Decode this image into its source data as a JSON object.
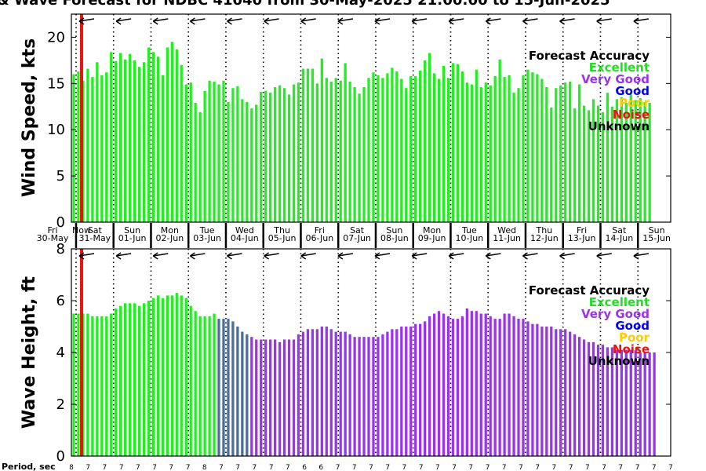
{
  "title": "& Wave Forecast for NDBC 41040 from 30-May-2025 21:00:00 to 15-Jun-2025",
  "legend": {
    "title": "Forecast Accuracy",
    "entries": [
      {
        "label": "Excellent",
        "color": "#22dd22"
      },
      {
        "label": "Very Good",
        "color": "#9933ee"
      },
      {
        "label": "Good",
        "color": "#0000ee"
      },
      {
        "label": "Poor",
        "color": "#ffcc00"
      },
      {
        "label": "Noise",
        "color": "#ee1111"
      },
      {
        "label": "Unknown",
        "color": "#000000"
      }
    ]
  },
  "colors": {
    "excellent": "#22ee22",
    "very_good": "#9933ee",
    "transition": "#4a6ea0",
    "now_line": "#ee1111"
  },
  "days": [
    {
      "dow": "Fri",
      "date": "30-May"
    },
    {
      "dow": "Sat",
      "date": "31-May"
    },
    {
      "dow": "Sun",
      "date": "01-Jun"
    },
    {
      "dow": "Mon",
      "date": "02-Jun"
    },
    {
      "dow": "Tue",
      "date": "03-Jun"
    },
    {
      "dow": "Wed",
      "date": "04-Jun"
    },
    {
      "dow": "Thu",
      "date": "05-Jun"
    },
    {
      "dow": "Fri",
      "date": "06-Jun"
    },
    {
      "dow": "Sat",
      "date": "07-Jun"
    },
    {
      "dow": "Sun",
      "date": "08-Jun"
    },
    {
      "dow": "Mon",
      "date": "09-Jun"
    },
    {
      "dow": "Tue",
      "date": "10-Jun"
    },
    {
      "dow": "Wed",
      "date": "11-Jun"
    },
    {
      "dow": "Thu",
      "date": "12-Jun"
    },
    {
      "dow": "Fri",
      "date": "13-Jun"
    },
    {
      "dow": "Sat",
      "date": "14-Jun"
    },
    {
      "dow": "Sun",
      "date": "15-Jun"
    }
  ],
  "now_label": "Now",
  "period_label": "Period, sec",
  "period_values": [
    "8",
    "7",
    "7",
    "7",
    "7",
    "7",
    "7",
    "7",
    "8",
    "7",
    "7",
    "7",
    "7",
    "7",
    "6",
    "6",
    "7",
    "7",
    "7",
    "7",
    "7",
    "7",
    "7",
    "7",
    "7",
    "7",
    "7",
    "7",
    "7",
    "7",
    "7",
    "7",
    "7",
    "7",
    "7",
    "7",
    "7"
  ],
  "chart_data": [
    {
      "type": "bar",
      "ylabel": "Wind Speed, kts",
      "ylim": [
        0,
        22.5
      ],
      "yticks": [
        0,
        5,
        10,
        15,
        20
      ],
      "x_start": "30-May-2025 21:00",
      "x_step_hours": 3,
      "values": [
        16.0,
        16.3,
        15.3,
        16.6,
        15.7,
        17.3,
        15.9,
        16.2,
        18.4,
        17.4,
        18.3,
        17.6,
        18.2,
        17.5,
        16.8,
        17.3,
        18.9,
        18.4,
        17.9,
        15.9,
        18.9,
        19.5,
        18.7,
        17.0,
        14.9,
        15.1,
        12.9,
        11.9,
        14.2,
        15.3,
        15.2,
        14.9,
        15.3,
        13.0,
        14.5,
        14.7,
        13.3,
        13.0,
        12.3,
        12.7,
        14.1,
        14.2,
        14.0,
        14.6,
        14.8,
        14.5,
        13.8,
        14.9,
        15.1,
        16.6,
        16.6,
        16.6,
        15.0,
        17.7,
        15.6,
        15.2,
        15.6,
        15.3,
        17.2,
        15.2,
        14.6,
        13.9,
        14.6,
        15.6,
        16.2,
        15.9,
        15.6,
        16.1,
        16.7,
        16.3,
        15.5,
        14.5,
        15.8,
        15.8,
        16.4,
        17.5,
        18.3,
        16.1,
        15.5,
        16.9,
        15.6,
        17.2,
        17.1,
        16.3,
        15.1,
        14.9,
        16.5,
        14.6,
        15.1,
        14.8,
        15.8,
        17.6,
        15.7,
        15.9,
        14.0,
        14.5,
        15.9,
        16.5,
        16.2,
        16.0,
        15.5,
        14.6,
        12.4,
        14.5,
        14.8,
        15.1,
        15.2,
        12.3,
        14.9,
        12.6,
        12.1,
        13.3,
        12.6,
        11.9,
        14.0,
        12.5,
        13.3,
        13.5,
        12.9,
        13.8,
        13.2,
        13.4,
        13.0,
        12.9
      ],
      "colors": [
        "excellent"
      ]
    },
    {
      "type": "bar",
      "ylabel": "Wave Height, ft",
      "ylim": [
        0,
        8
      ],
      "yticks": [
        0,
        2,
        4,
        6,
        8
      ],
      "x_start": "30-May-2025 21:00",
      "x_step_hours": 3,
      "values": [
        5.5,
        5.5,
        5.5,
        5.5,
        5.4,
        5.4,
        5.4,
        5.4,
        5.5,
        5.7,
        5.8,
        5.9,
        5.9,
        5.9,
        5.8,
        5.9,
        6.0,
        6.1,
        6.2,
        6.1,
        6.2,
        6.2,
        6.3,
        6.2,
        6.1,
        5.8,
        5.6,
        5.4,
        5.4,
        5.4,
        5.5,
        5.3,
        5.3,
        5.3,
        5.2,
        5.0,
        4.8,
        4.7,
        4.6,
        4.5,
        4.5,
        4.5,
        4.5,
        4.5,
        4.4,
        4.5,
        4.5,
        4.5,
        4.7,
        4.8,
        4.9,
        4.9,
        4.9,
        5.0,
        5.0,
        4.9,
        4.8,
        4.8,
        4.8,
        4.7,
        4.6,
        4.6,
        4.6,
        4.6,
        4.6,
        4.6,
        4.7,
        4.8,
        4.9,
        4.9,
        5.0,
        5.0,
        5.0,
        5.1,
        5.1,
        5.2,
        5.4,
        5.5,
        5.6,
        5.5,
        5.4,
        5.3,
        5.3,
        5.4,
        5.7,
        5.6,
        5.6,
        5.5,
        5.5,
        5.4,
        5.3,
        5.3,
        5.5,
        5.5,
        5.4,
        5.3,
        5.3,
        5.2,
        5.1,
        5.1,
        5.0,
        5.0,
        5.0,
        4.9,
        4.9,
        4.9,
        4.8,
        4.7,
        4.6,
        4.5,
        4.4,
        4.4,
        4.3,
        4.3,
        4.2,
        4.2,
        4.1,
        4.1,
        4.1,
        4.1,
        4.1,
        4.0,
        4.0,
        4.0,
        4.0
      ],
      "colors": [
        "excellent",
        "transition",
        "very_good"
      ]
    }
  ]
}
